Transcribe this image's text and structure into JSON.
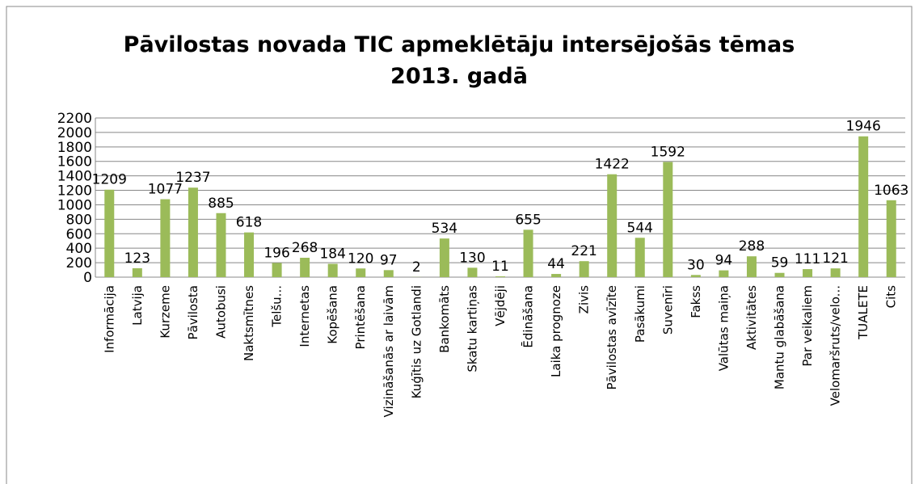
{
  "chart_data": {
    "type": "bar",
    "title": [
      "Pāvilostas novada TIC apmeklētāju intersējošās tēmas",
      "2013. gadā"
    ],
    "categories": [
      "Informācija",
      "Latvija",
      "Kurzeme",
      "Pāvilosta",
      "Autobusi",
      "Naktsmītnes",
      "Telšu...",
      "Internetas",
      "Kopēšana",
      "Printēšana",
      "Vizināšanās ar laivām",
      "Kuģītis uz Gotlandi",
      "Bankomāts",
      "Skatu kartiņas",
      "Vējdēji",
      "Ēdināšana",
      "Laika prognoze",
      "Zivis",
      "Pāvilostas avīzīte",
      "Pasākumi",
      "Suvenīri",
      "Fakss",
      "Valūtas maiņa",
      "Aktivitātes",
      "Mantu glabāšana",
      "Par veikaliem",
      "Velomaršruts/velo...",
      "TUALETE",
      "Cits"
    ],
    "values": [
      1209,
      123,
      1077,
      1237,
      885,
      618,
      196,
      268,
      184,
      120,
      97,
      2,
      534,
      130,
      11,
      655,
      44,
      221,
      1422,
      544,
      1592,
      30,
      94,
      288,
      59,
      111,
      121,
      1946,
      1063
    ],
    "color": "#9bbb59",
    "ylim": [
      0,
      2200
    ],
    "yticks": [
      0,
      200,
      400,
      600,
      800,
      1000,
      1200,
      1400,
      1600,
      1800,
      2000,
      2200
    ],
    "grid": true
  }
}
